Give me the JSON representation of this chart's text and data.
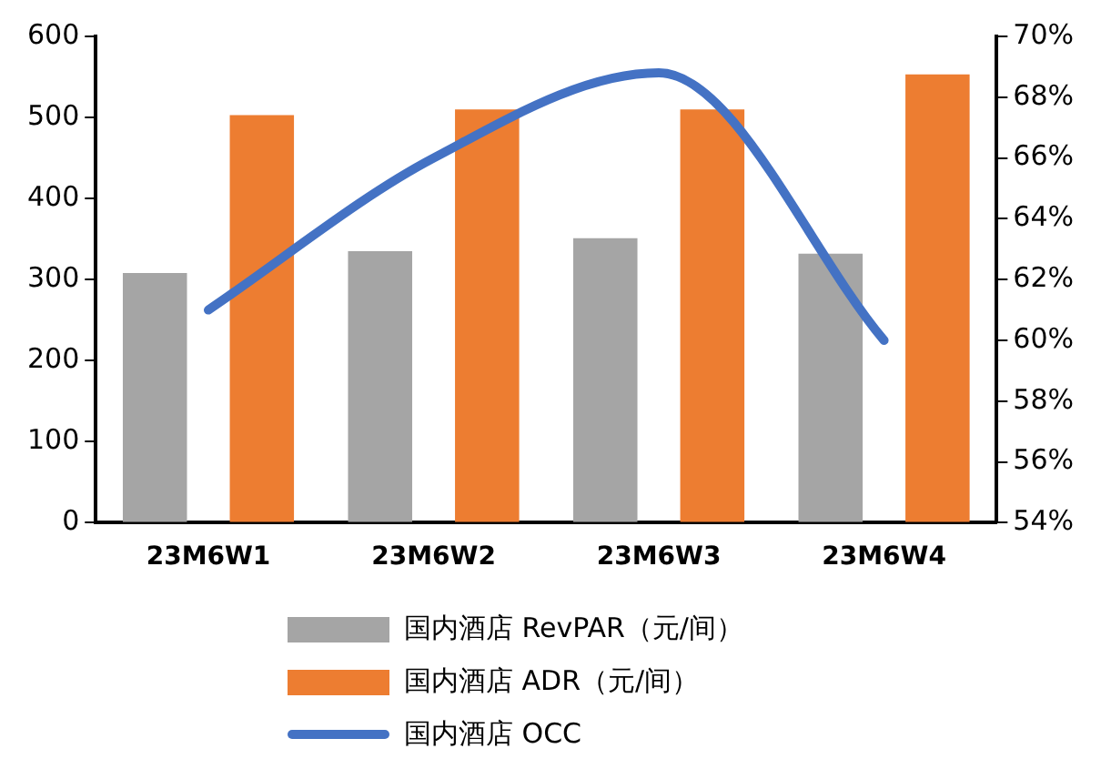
{
  "chart_data": {
    "type": "bar",
    "categories": [
      "23M6W1",
      "23M6W2",
      "23M6W3",
      "23M6W4"
    ],
    "series": [
      {
        "name": "国内酒店 RevPAR（元/间）",
        "color": "#a5a5a5",
        "values": [
          308,
          335,
          351,
          332
        ]
      },
      {
        "name": "国内酒店 ADR（元/间）",
        "color": "#ed7d31",
        "values": [
          503,
          510,
          510,
          553
        ]
      },
      {
        "name": "国内酒店 OCC",
        "color": "#4472c4",
        "type": "line",
        "axis": "y2",
        "marker": "none",
        "values": [
          61.0,
          66.0,
          68.8,
          60.0
        ]
      }
    ],
    "ylim": [
      0,
      600
    ],
    "yticks": [
      0,
      100,
      200,
      300,
      400,
      500,
      600
    ],
    "y2lim": [
      54,
      70
    ],
    "y2ticks": [
      {
        "value": 54,
        "label": "54%"
      },
      {
        "value": 56,
        "label": "56%"
      },
      {
        "value": 58,
        "label": "58%"
      },
      {
        "value": 60,
        "label": "60%"
      },
      {
        "value": 62,
        "label": "62%"
      },
      {
        "value": 64,
        "label": "64%"
      },
      {
        "value": 66,
        "label": "66%"
      },
      {
        "value": 68,
        "label": "68%"
      },
      {
        "value": 70,
        "label": "70%"
      }
    ],
    "grid": false,
    "legend": "bottom"
  }
}
